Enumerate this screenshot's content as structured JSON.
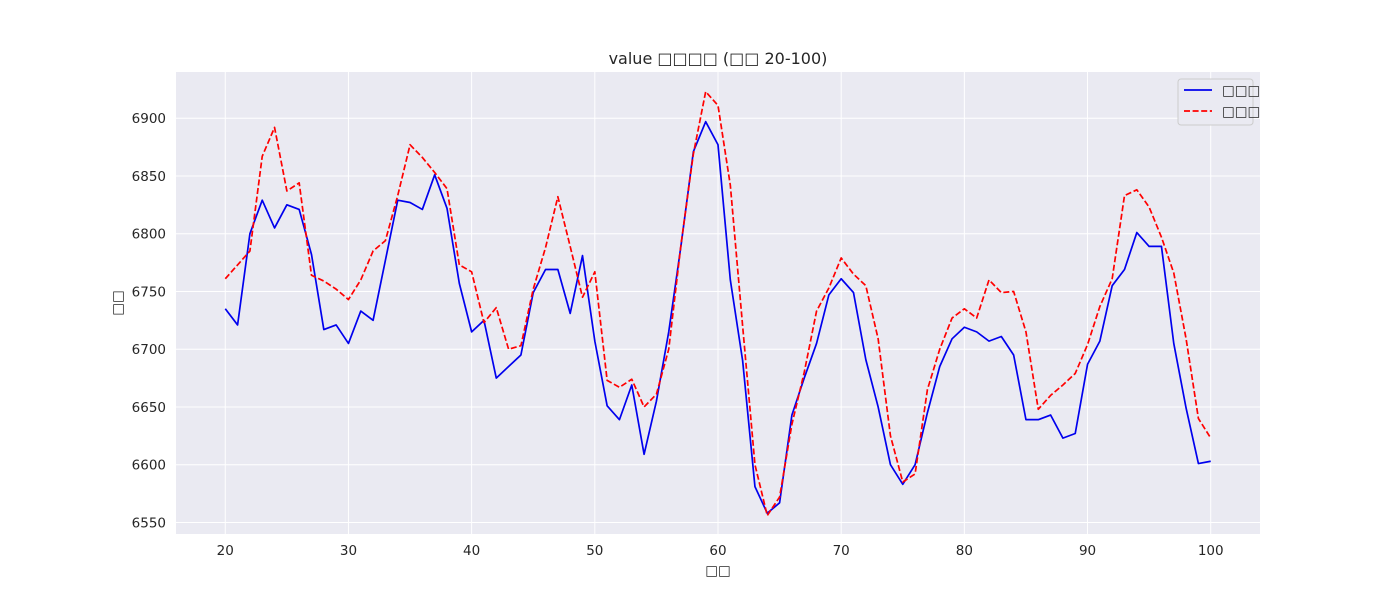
{
  "chart_data": {
    "type": "line",
    "title": "value □□□□ (□□ 20-100)",
    "xlabel": "□□",
    "ylabel": "□□",
    "xlim": [
      16,
      104
    ],
    "ylim": [
      6540,
      6940
    ],
    "xticks": [
      20,
      30,
      40,
      50,
      60,
      70,
      80,
      90,
      100
    ],
    "yticks": [
      6550,
      6600,
      6650,
      6700,
      6750,
      6800,
      6850,
      6900
    ],
    "grid": true,
    "legend_position": "top-right",
    "x": [
      20,
      21,
      22,
      23,
      24,
      25,
      26,
      27,
      28,
      29,
      30,
      31,
      32,
      33,
      34,
      35,
      36,
      37,
      38,
      39,
      40,
      41,
      42,
      43,
      44,
      45,
      46,
      47,
      48,
      49,
      50,
      51,
      52,
      53,
      54,
      55,
      56,
      57,
      58,
      59,
      60,
      61,
      62,
      63,
      64,
      65,
      66,
      67,
      68,
      69,
      70,
      71,
      72,
      73,
      74,
      75,
      76,
      77,
      78,
      79,
      80,
      81,
      82,
      83,
      84,
      85,
      86,
      87,
      88,
      89,
      90,
      91,
      92,
      93,
      94,
      95,
      96,
      97,
      98,
      99,
      100
    ],
    "series": [
      {
        "name": "□□□",
        "color": "#0000ee",
        "style": "solid",
        "values": [
          6735,
          6721,
          6800,
          6829,
          6805,
          6825,
          6821,
          6782,
          6717,
          6721,
          6705,
          6733,
          6725,
          6777,
          6829,
          6827,
          6821,
          6851,
          6822,
          6757,
          6715,
          6725,
          6675,
          6685,
          6695,
          6749,
          6769,
          6769,
          6731,
          6781,
          6707,
          6651,
          6639,
          6669,
          6609,
          6655,
          6715,
          6790,
          6871,
          6897,
          6877,
          6760,
          6690,
          6581,
          6558,
          6567,
          6643,
          6675,
          6705,
          6747,
          6761,
          6749,
          6691,
          6650,
          6600,
          6583,
          6600,
          6645,
          6685,
          6709,
          6719,
          6715,
          6707,
          6711,
          6695,
          6639,
          6639,
          6643,
          6623,
          6627,
          6687,
          6707,
          6755,
          6769,
          6801,
          6789,
          6789,
          6705,
          6649,
          6601,
          6603
        ]
      },
      {
        "name": "□□□",
        "color": "#ff0000",
        "style": "dashed",
        "values": [
          6761,
          6773,
          6785,
          6867,
          6892,
          6837,
          6844,
          6764,
          6759,
          6752,
          6743,
          6760,
          6785,
          6794,
          6833,
          6877,
          6866,
          6853,
          6839,
          6773,
          6767,
          6723,
          6736,
          6700,
          6703,
          6752,
          6788,
          6832,
          6789,
          6745,
          6767,
          6673,
          6667,
          6674,
          6650,
          6661,
          6700,
          6791,
          6869,
          6923,
          6911,
          6842,
          6720,
          6600,
          6556,
          6572,
          6635,
          6680,
          6733,
          6753,
          6779,
          6765,
          6755,
          6709,
          6625,
          6585,
          6592,
          6665,
          6700,
          6727,
          6735,
          6727,
          6760,
          6749,
          6750,
          6715,
          6648,
          6660,
          6669,
          6679,
          6704,
          6737,
          6761,
          6833,
          6838,
          6823,
          6797,
          6766,
          6709,
          6640,
          6623
        ]
      }
    ]
  }
}
